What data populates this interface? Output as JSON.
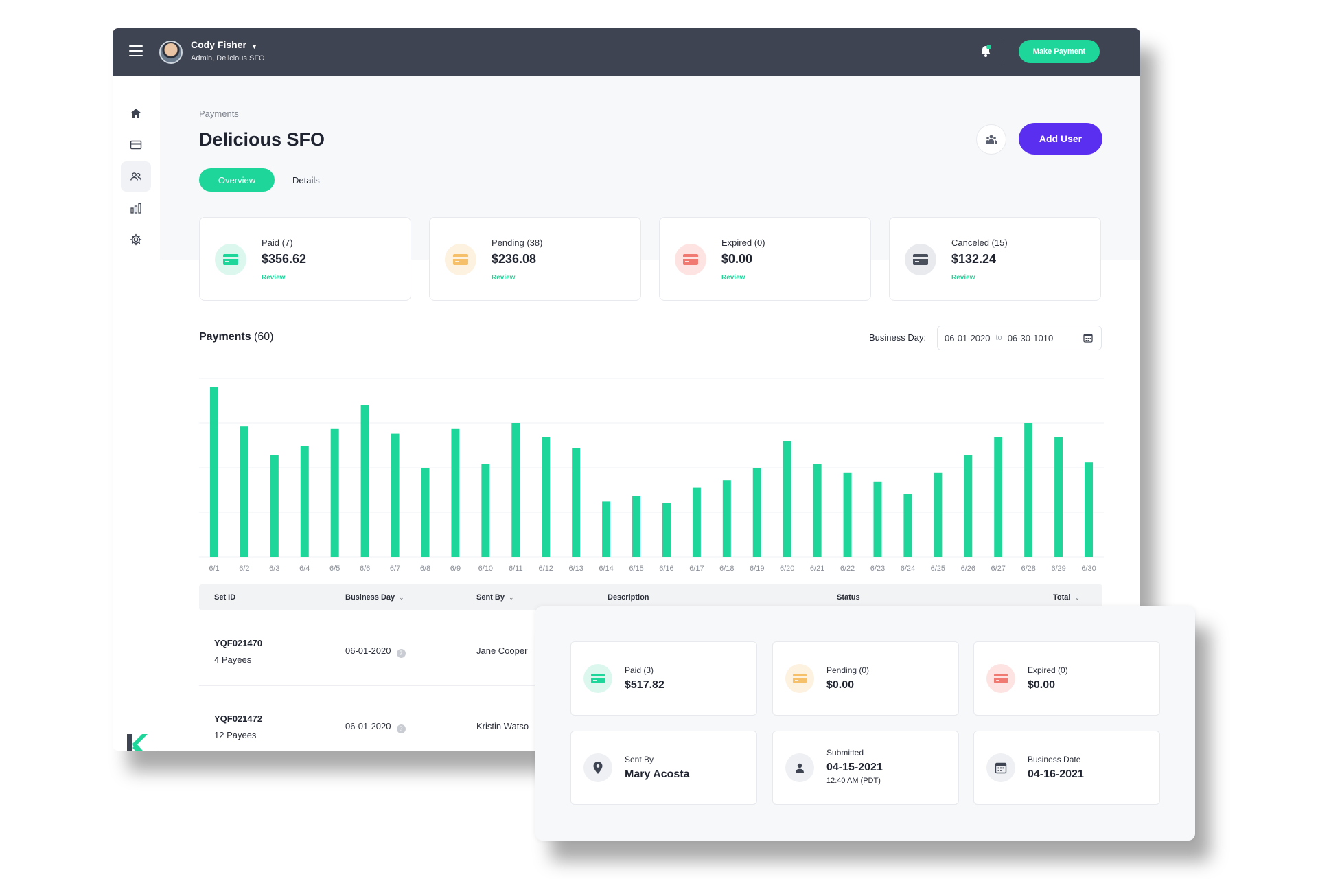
{
  "colors": {
    "accent": "#1ed69a",
    "primary": "#5b2ff0",
    "topbar": "#3f4452",
    "pending": "#f6c06b",
    "expired": "#f07a72",
    "canceled": "#4a4f5c"
  },
  "header": {
    "user_name": "Cody Fisher",
    "user_role": "Admin, Delicious SFO",
    "make_payment_label": "Make Payment"
  },
  "sidebar": {
    "items": [
      {
        "icon": "home-icon"
      },
      {
        "icon": "credit-card-icon"
      },
      {
        "icon": "users-icon",
        "active": true
      },
      {
        "icon": "bar-chart-icon"
      },
      {
        "icon": "gear-icon"
      }
    ]
  },
  "page": {
    "breadcrumb": "Payments",
    "title": "Delicious SFO",
    "tabs": [
      {
        "label": "Overview",
        "active": true
      },
      {
        "label": "Details"
      }
    ],
    "add_user_label": "Add User"
  },
  "stats": [
    {
      "label": "Paid (7)",
      "value": "$356.62",
      "action": "Review"
    },
    {
      "label": "Pending (38)",
      "value": "$236.08",
      "action": "Review"
    },
    {
      "label": "Expired (0)",
      "value": "$0.00",
      "action": "Review"
    },
    {
      "label": "Canceled (15)",
      "value": "$132.24",
      "action": "Review"
    }
  ],
  "payments": {
    "title": "Payments",
    "count": "(60)",
    "business_day_label": "Business Day:",
    "date_from": "06-01-2020",
    "date_to_label": "to",
    "date_to": "06-30-1010"
  },
  "chart_data": {
    "type": "bar",
    "categories": [
      "6/1",
      "6/2",
      "6/3",
      "6/4",
      "6/5",
      "6/6",
      "6/7",
      "6/8",
      "6/9",
      "6/10",
      "6/11",
      "6/12",
      "6/13",
      "6/14",
      "6/15",
      "6/16",
      "6/17",
      "6/18",
      "6/19",
      "6/20",
      "6/21",
      "6/22",
      "6/23",
      "6/24",
      "6/25",
      "6/26",
      "6/27",
      "6/28",
      "6/29",
      "6/30"
    ],
    "values": [
      95,
      73,
      57,
      62,
      72,
      85,
      69,
      50,
      72,
      52,
      75,
      67,
      61,
      31,
      34,
      30,
      39,
      43,
      50,
      65,
      52,
      47,
      42,
      35,
      47,
      57,
      67,
      75,
      67,
      53
    ],
    "ylim": [
      0,
      100
    ],
    "grid": true,
    "color": "#1ed69a"
  },
  "table": {
    "columns": [
      {
        "label": "Set ID",
        "sortable": false
      },
      {
        "label": "Business Day",
        "sortable": true
      },
      {
        "label": "Sent By",
        "sortable": true
      },
      {
        "label": "Description",
        "sortable": false
      },
      {
        "label": "Status",
        "sortable": false
      },
      {
        "label": "Total",
        "sortable": true
      }
    ],
    "rows": [
      {
        "set_id": "YQF021470",
        "payees": "4 Payees",
        "business_day": "06-01-2020",
        "sent_by": "Jane Cooper"
      },
      {
        "set_id": "YQF021472",
        "payees": "12 Payees",
        "business_day": "06-01-2020",
        "sent_by": "Kristin Watso"
      }
    ]
  },
  "detail_panel": {
    "cards": [
      {
        "label": "Paid (3)",
        "value": "$517.82"
      },
      {
        "label": "Pending (0)",
        "value": "$0.00"
      },
      {
        "label": "Expired (0)",
        "value": "$0.00"
      },
      {
        "label": "Sent By",
        "value": "Mary Acosta"
      },
      {
        "label": "Submitted",
        "value": "04-15-2021",
        "extra": "12:40 AM (PDT)"
      },
      {
        "label": "Business Date",
        "value": "04-16-2021"
      }
    ]
  }
}
